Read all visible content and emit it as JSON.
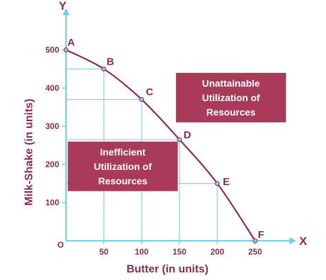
{
  "chart_data": {
    "type": "line",
    "xlabel": "Butter (in units)",
    "ylabel": "Milk-Shake (in units)",
    "x_axis_letter": "X",
    "y_axis_letter": "Y",
    "origin_label": "O",
    "xlim": [
      0,
      250
    ],
    "ylim": [
      0,
      500
    ],
    "x_ticks": [
      50,
      100,
      150,
      200,
      250
    ],
    "y_ticks": [
      100,
      200,
      300,
      400,
      500
    ],
    "points": [
      {
        "label": "A",
        "x": 0,
        "y": 500
      },
      {
        "label": "B",
        "x": 50,
        "y": 450
      },
      {
        "label": "C",
        "x": 100,
        "y": 370
      },
      {
        "label": "D",
        "x": 150,
        "y": 265
      },
      {
        "label": "E",
        "x": 200,
        "y": 150
      },
      {
        "label": "F",
        "x": 250,
        "y": 0
      }
    ],
    "annotations": [
      {
        "lines": [
          "Unattainable",
          "Utilization of",
          "Resources"
        ],
        "x": 218,
        "y": 375
      },
      {
        "lines": [
          "Inefficient",
          "Utilization of",
          "Resources"
        ],
        "x": 75,
        "y": 195
      }
    ],
    "grid": "dropped guide lines from each point to both axes"
  },
  "colors": {
    "axis": "#6fd0e8",
    "guides": "#7fd3ea",
    "curve": "#8b2a4a",
    "text": "#8b2a4a",
    "box_fill": "#a93a5a",
    "box_text": "#ffffff",
    "marker": "#9bc3d6"
  }
}
